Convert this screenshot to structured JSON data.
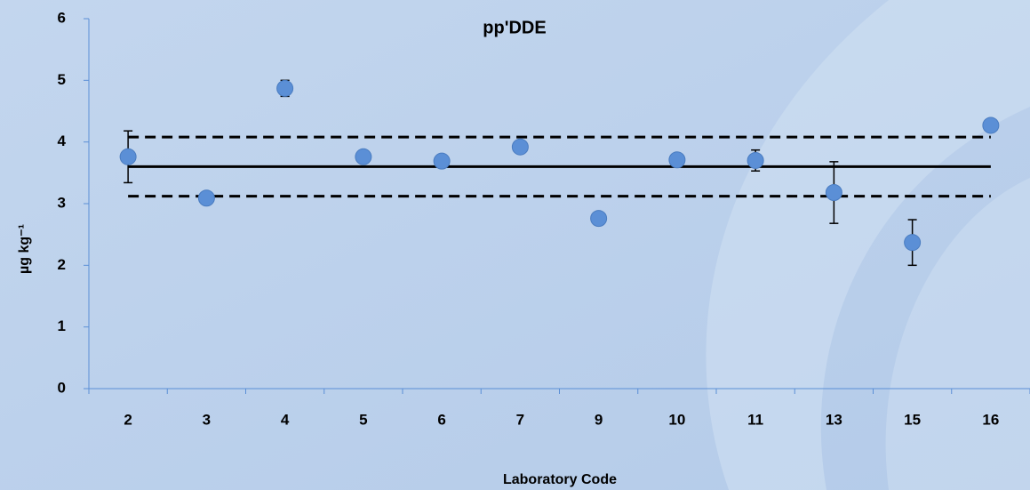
{
  "chart_data": {
    "type": "scatter",
    "title": "pp'DDE",
    "x_label": "Laboratory Code",
    "y_label": "µg kg⁻¹",
    "categories": [
      "2",
      "3",
      "4",
      "5",
      "6",
      "7",
      "9",
      "10",
      "11",
      "13",
      "15",
      "16"
    ],
    "values": [
      3.76,
      3.09,
      4.87,
      3.76,
      3.69,
      3.92,
      2.76,
      3.71,
      3.7,
      3.18,
      2.37,
      4.27
    ],
    "errors": [
      0.42,
      null,
      0.13,
      null,
      null,
      null,
      null,
      null,
      0.17,
      0.5,
      0.37,
      null
    ],
    "color": "#5b8fd6",
    "reference_lines": [
      {
        "value": 3.6,
        "style": "solid"
      },
      {
        "value": 4.08,
        "style": "dashed"
      },
      {
        "value": 3.12,
        "style": "dashed"
      }
    ],
    "ylim": [
      0,
      6
    ],
    "yticks": [
      0,
      1,
      2,
      3,
      4,
      5,
      6
    ]
  }
}
